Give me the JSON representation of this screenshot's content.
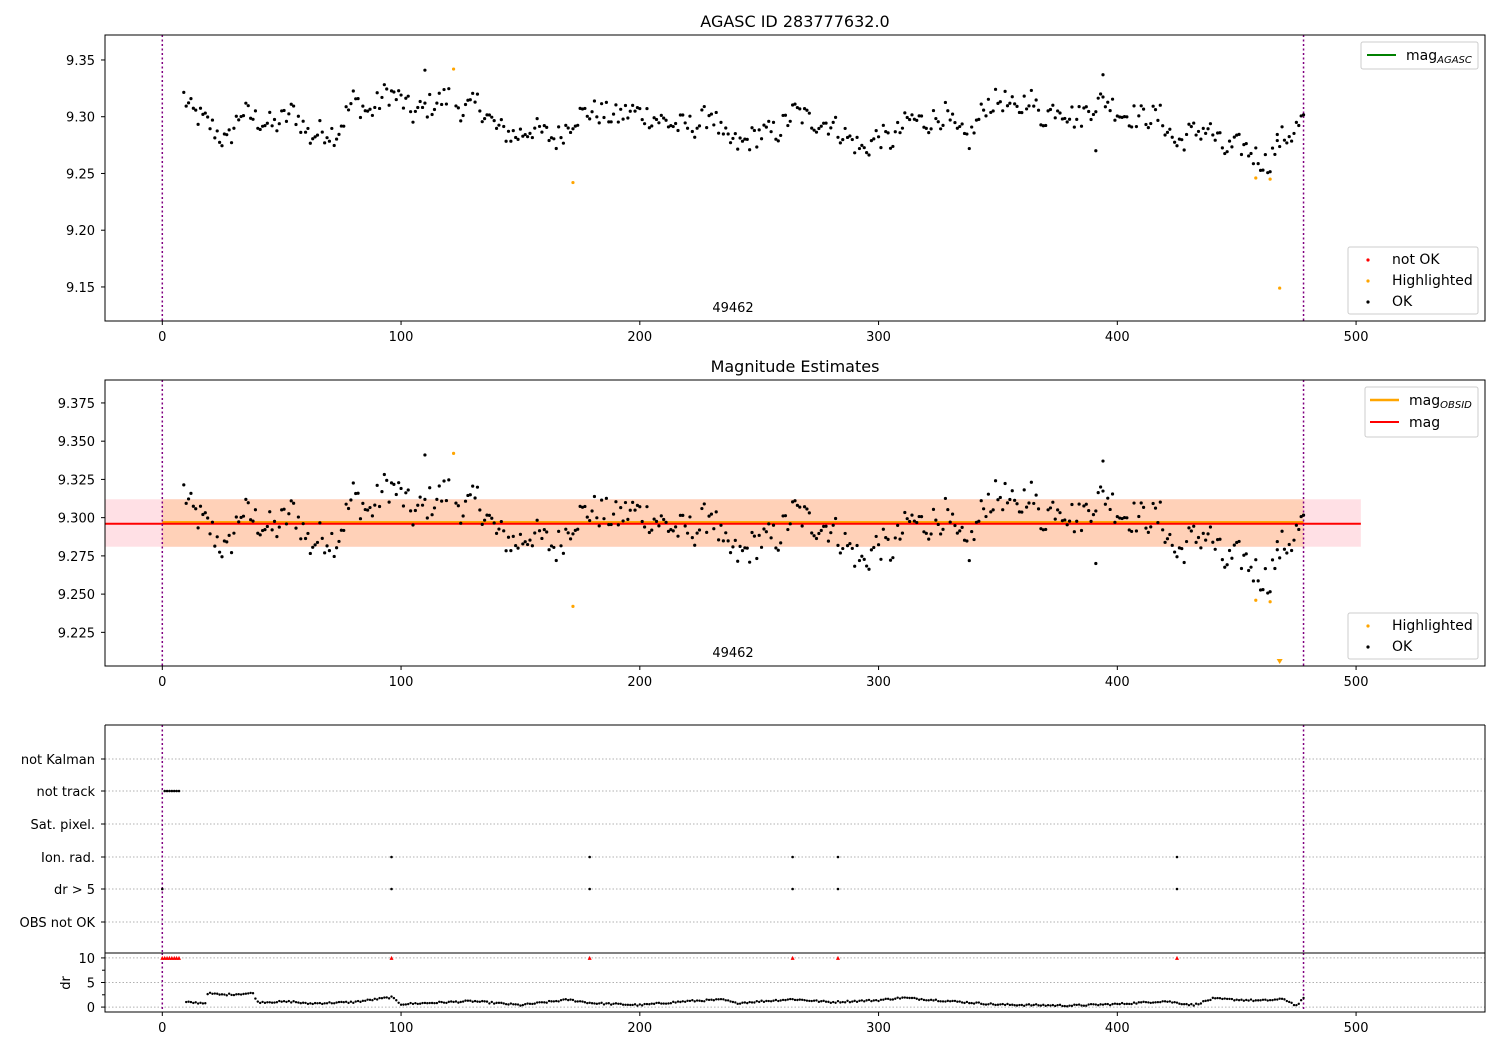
{
  "chart_data": [
    {
      "type": "scatter",
      "title": "AGASC ID 283777632.0",
      "annotation": "49462",
      "xlim": [
        -24,
        554
      ],
      "ylim": [
        9.12,
        9.372
      ],
      "xticks": [
        0,
        100,
        200,
        300,
        400,
        500
      ],
      "yticks": [
        9.15,
        9.2,
        9.25,
        9.3,
        9.35
      ],
      "vlines": [
        0,
        478
      ],
      "series": [
        {
          "name": "OK",
          "color": "#000000",
          "anchors": [
            [
              9,
              9.318
            ],
            [
              12,
              9.305
            ],
            [
              20,
              9.293
            ],
            [
              27,
              9.276
            ],
            [
              33,
              9.305
            ],
            [
              40,
              9.297
            ],
            [
              47,
              9.292
            ],
            [
              55,
              9.305
            ],
            [
              62,
              9.282
            ],
            [
              67,
              9.288
            ],
            [
              73,
              9.285
            ],
            [
              80,
              9.315
            ],
            [
              87,
              9.303
            ],
            [
              94,
              9.322
            ],
            [
              100,
              9.315
            ],
            [
              105,
              9.302
            ],
            [
              112,
              9.31
            ],
            [
              120,
              9.318
            ],
            [
              126,
              9.305
            ],
            [
              132,
              9.312
            ],
            [
              140,
              9.29
            ],
            [
              148,
              9.283
            ],
            [
              155,
              9.29
            ],
            [
              165,
              9.28
            ],
            [
              173,
              9.3
            ],
            [
              180,
              9.305
            ],
            [
              190,
              9.3
            ],
            [
              197,
              9.305
            ],
            [
              205,
              9.3
            ],
            [
              215,
              9.292
            ],
            [
              224,
              9.292
            ],
            [
              230,
              9.305
            ],
            [
              235,
              9.28
            ],
            [
              242,
              9.275
            ],
            [
              250,
              9.285
            ],
            [
              258,
              9.287
            ],
            [
              265,
              9.305
            ],
            [
              272,
              9.296
            ],
            [
              280,
              9.294
            ],
            [
              288,
              9.28
            ],
            [
              294,
              9.27
            ],
            [
              300,
              9.284
            ],
            [
              305,
              9.278
            ],
            [
              313,
              9.298
            ],
            [
              320,
              9.295
            ],
            [
              328,
              9.302
            ],
            [
              333,
              9.285
            ],
            [
              338,
              9.28
            ],
            [
              345,
              9.311
            ],
            [
              352,
              9.315
            ],
            [
              358,
              9.303
            ],
            [
              363,
              9.32
            ],
            [
              368,
              9.298
            ],
            [
              375,
              9.31
            ],
            [
              383,
              9.298
            ],
            [
              390,
              9.31
            ],
            [
              395,
              9.315
            ],
            [
              402,
              9.302
            ],
            [
              410,
              9.3
            ],
            [
              418,
              9.3
            ],
            [
              425,
              9.275
            ],
            [
              430,
              9.285
            ],
            [
              438,
              9.29
            ],
            [
              445,
              9.27
            ],
            [
              452,
              9.275
            ],
            [
              458,
              9.265
            ],
            [
              463,
              9.258
            ],
            [
              468,
              9.28
            ],
            [
              473,
              9.285
            ],
            [
              478,
              9.298
            ]
          ],
          "extra": [
            [
              391,
              9.27
            ],
            [
              394,
              9.337
            ],
            [
              110,
              9.341
            ],
            [
              467,
              9.279
            ]
          ]
        },
        {
          "name": "Highlighted",
          "color": "#ffa500",
          "points": [
            [
              122,
              9.342
            ],
            [
              172,
              9.242
            ],
            [
              458,
              9.246
            ],
            [
              464,
              9.245
            ],
            [
              468,
              9.149
            ]
          ]
        },
        {
          "name": "not OK",
          "color": "#ff0000",
          "points": []
        }
      ],
      "line_legend": [
        {
          "name": "mag",
          "subscript": "AGASC",
          "color": "#008000"
        }
      ],
      "scatter_legend": [
        "not OK",
        "Highlighted",
        "OK"
      ]
    },
    {
      "type": "scatter",
      "title": "Magnitude Estimates",
      "annotation": "49462",
      "xlim": [
        -24,
        554
      ],
      "ylim": [
        9.203,
        9.39
      ],
      "xticks": [
        0,
        100,
        200,
        300,
        400,
        500
      ],
      "yticks": [
        9.225,
        9.25,
        9.275,
        9.3,
        9.325,
        9.35,
        9.375
      ],
      "vlines": [
        0,
        478
      ],
      "mag": 9.296,
      "mag_obsid": 9.297,
      "band_wide": [
        9.281,
        9.312
      ],
      "band_narrow": [
        9.281,
        9.312
      ],
      "band_xrange": [
        -24,
        502
      ],
      "band_narrow_xrange": [
        0,
        478
      ],
      "series": [
        {
          "name": "OK",
          "color": "#000000",
          "ref": "same as panel 1"
        },
        {
          "name": "Highlighted",
          "color": "#ffa500",
          "points": [
            [
              122,
              9.342
            ],
            [
              172,
              9.242
            ],
            [
              458,
              9.246
            ],
            [
              464,
              9.245
            ]
          ]
        }
      ],
      "marker_below": {
        "x": 468,
        "color": "#ffa500"
      },
      "line_legend": [
        {
          "name": "mag",
          "subscript": "OBSID",
          "color": "#ffa500"
        },
        {
          "name": "mag",
          "subscript": "",
          "color": "#ff0000"
        }
      ],
      "scatter_legend": [
        "Highlighted",
        "OK"
      ]
    },
    {
      "type": "scatter",
      "title": "",
      "xlim": [
        -24,
        554
      ],
      "xticks": [
        0,
        100,
        200,
        300,
        400,
        500
      ],
      "categories": [
        "not Kalman",
        "not track",
        "Sat. pixel.",
        "Ion. rad.",
        "dr > 5",
        "OBS not OK"
      ],
      "vlines": [
        0,
        478
      ],
      "flags": {
        "not track": [
          1,
          2,
          3,
          4,
          5,
          6,
          7
        ],
        "Ion. rad.": [
          96,
          179,
          264,
          283,
          425
        ],
        "dr > 5": [
          0,
          96,
          179,
          264,
          283,
          425
        ]
      }
    },
    {
      "type": "scatter",
      "title": "",
      "ylabel": "dr",
      "xlim": [
        -24,
        554
      ],
      "ylim": [
        -1,
        11
      ],
      "yticks": [
        0,
        5,
        10
      ],
      "xticks": [
        0,
        100,
        200,
        300,
        400,
        500
      ],
      "vlines": [
        0,
        478
      ],
      "clipped_markers": [
        0,
        1,
        2,
        3,
        4,
        5,
        6,
        7,
        96,
        179,
        264,
        283,
        425
      ],
      "dr_anchors": [
        [
          8,
          1.0
        ],
        [
          18,
          0.8
        ],
        [
          19,
          2.8
        ],
        [
          25,
          2.5
        ],
        [
          38,
          2.8
        ],
        [
          40,
          1.0
        ],
        [
          55,
          1.1
        ],
        [
          60,
          0.7
        ],
        [
          80,
          1.0
        ],
        [
          96,
          2.0
        ],
        [
          100,
          0.6
        ],
        [
          130,
          1.2
        ],
        [
          150,
          0.4
        ],
        [
          170,
          1.5
        ],
        [
          180,
          0.8
        ],
        [
          200,
          0.4
        ],
        [
          220,
          1.2
        ],
        [
          235,
          1.5
        ],
        [
          240,
          0.8
        ],
        [
          264,
          1.6
        ],
        [
          280,
          1.0
        ],
        [
          300,
          1.4
        ],
        [
          310,
          1.9
        ],
        [
          330,
          1.2
        ],
        [
          350,
          0.5
        ],
        [
          380,
          0.3
        ],
        [
          400,
          0.6
        ],
        [
          420,
          1.2
        ],
        [
          432,
          0.4
        ],
        [
          440,
          1.7
        ],
        [
          460,
          1.3
        ],
        [
          470,
          1.6
        ],
        [
          475,
          0.3
        ],
        [
          478,
          1.7
        ]
      ]
    }
  ]
}
